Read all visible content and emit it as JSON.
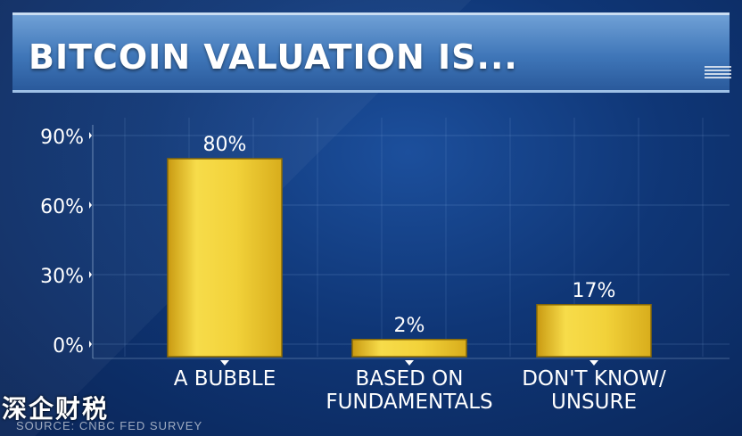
{
  "chart_data": {
    "type": "bar",
    "title": "BITCOIN VALUATION IS...",
    "categories": [
      [
        "A BUBBLE"
      ],
      [
        "BASED ON",
        "FUNDAMENTALS"
      ],
      [
        "DON'T KNOW/",
        "UNSURE"
      ]
    ],
    "values": [
      80,
      2,
      17
    ],
    "value_labels": [
      "80%",
      "2%",
      "17%"
    ],
    "yticks": [
      0,
      30,
      60,
      90
    ],
    "ytick_labels": [
      "0%",
      "30%",
      "60%",
      "90%"
    ],
    "ylim": [
      0,
      90
    ],
    "grid": true,
    "bar_color": "#f2d23a"
  },
  "watermark": "深企财税",
  "source": "SOURCE: CNBC FED SURVEY"
}
